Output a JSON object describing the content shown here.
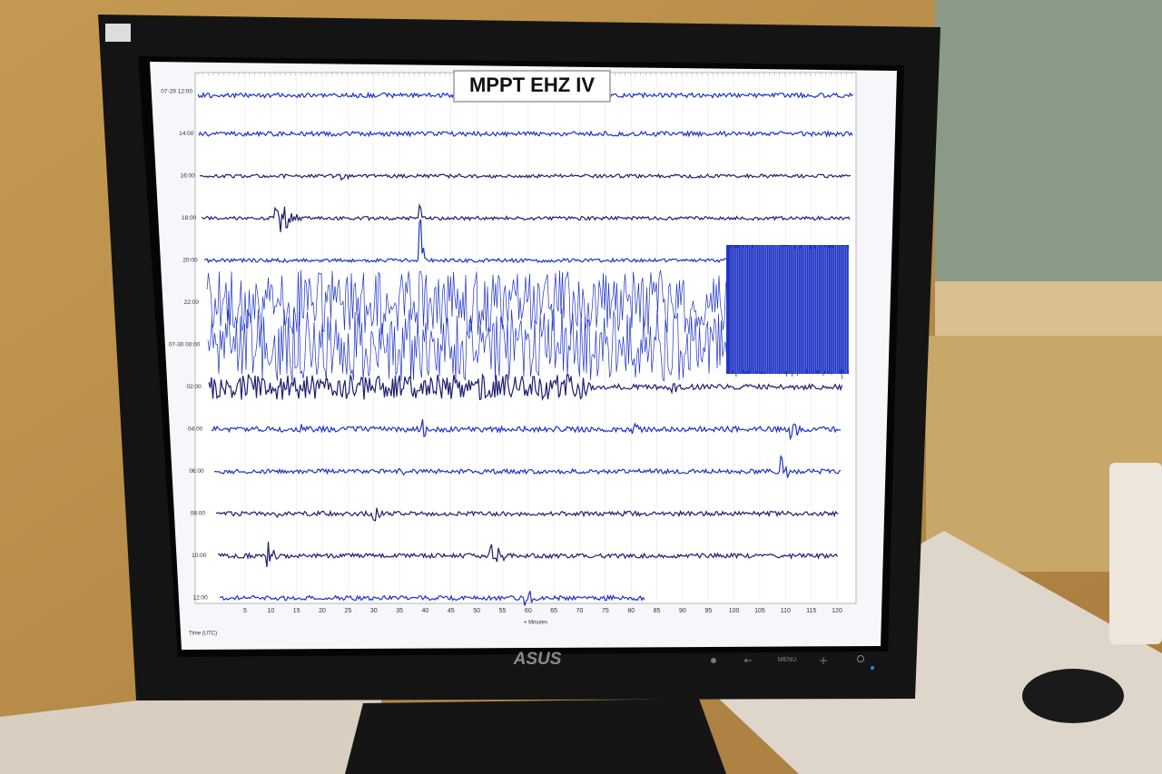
{
  "screen": {
    "title": "MPPT EHZ IV",
    "row_labels": [
      "07-29 12:00",
      "14:00",
      "16:00",
      "18:00",
      "20:00",
      "22:00",
      "07-30 00:00",
      "02:00",
      "04:00",
      "06:00",
      "08:00",
      "10:00",
      "12:00"
    ],
    "x_ticks": [
      5,
      10,
      15,
      20,
      25,
      30,
      35,
      40,
      45,
      50,
      55,
      60,
      65,
      70,
      75,
      80,
      85,
      90,
      95,
      100,
      105,
      110,
      115,
      120
    ],
    "y_axis_label": "Time (UTC)",
    "x_axis_label": "+ Minutes"
  },
  "monitor": {
    "brand": "ASUS",
    "button_label": "MENU"
  }
}
